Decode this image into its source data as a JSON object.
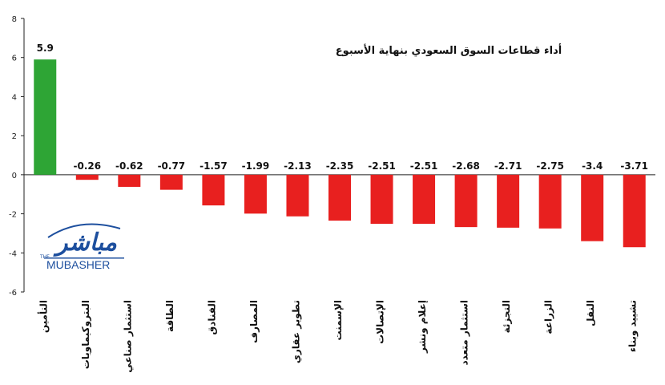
{
  "chart_data": {
    "type": "bar",
    "title": "أداء قطاعات السوق السعودي بنهاية الأسبوع",
    "xlabel": "",
    "ylabel": "",
    "ylim": [
      -6,
      8
    ],
    "yticks": [
      8,
      6,
      4,
      2,
      0,
      -2,
      -4,
      -6
    ],
    "grid": false,
    "categories": [
      "التأمين",
      "البتروكيماويات",
      "استثمار صناعي",
      "الطاقة",
      "الفنادق",
      "المصارف",
      "تطوير عقاري",
      "الإسمنت",
      "الإتصالات",
      "إعلام ونشر",
      "استثمار متعدد",
      "التجزئة",
      "الزراعة",
      "النقل",
      "تشييد وبناء"
    ],
    "values": [
      5.9,
      -0.26,
      -0.62,
      -0.77,
      -1.57,
      -1.99,
      -2.13,
      -2.35,
      -2.51,
      -2.51,
      -2.68,
      -2.71,
      -2.75,
      -3.4,
      -3.71
    ],
    "value_labels": [
      "5.9",
      "-0.26",
      "-0.62",
      "-0.77",
      "-1.57",
      "-1.99",
      "-2.13",
      "-2.35",
      "-2.51",
      "-2.51",
      "-2.68",
      "-2.71",
      "-2.75",
      "-3.4",
      "-3.71"
    ],
    "colors": {
      "positive": "#2ea535",
      "negative": "#e8201f",
      "axis": "#222222"
    }
  },
  "logo": {
    "arabic": "مباشر",
    "latin": "MUBASHER",
    "small": "THE"
  }
}
